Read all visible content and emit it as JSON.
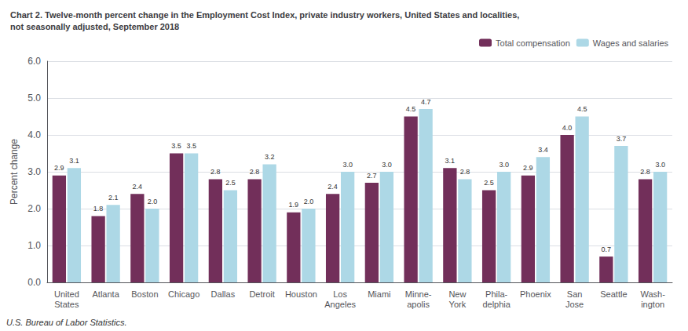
{
  "chart_data": {
    "type": "bar",
    "title": "Chart 2. Twelve-month percent change in the Employment Cost Index, private industry workers, United States and localities,\nnot seasonally adjusted, September 2018",
    "ylabel": "Percent change",
    "annotations": [
      "U.S. Bureau of Labor Statistics."
    ],
    "categories": [
      "United\nStates",
      "Atlanta",
      "Boston",
      "Chicago",
      "Dallas",
      "Detroit",
      "Houston",
      "Los\nAngeles",
      "Miami",
      "Minne-\napolis",
      "New\nYork",
      "Phila-\ndelphia",
      "Phoenix",
      "San\nJose",
      "Seattle",
      "Wash-\nington"
    ],
    "series": [
      {
        "name": "Total compensation",
        "color": "#722F5A",
        "values": [
          2.9,
          1.8,
          2.4,
          3.5,
          2.8,
          2.8,
          1.9,
          2.4,
          2.7,
          4.5,
          3.1,
          2.5,
          2.9,
          4.0,
          0.7,
          2.8
        ],
        "value_labels": [
          "2.9",
          "1.8",
          "2.4",
          "3.5",
          "2.8",
          "2.8",
          "1.9",
          "2.4",
          "2.7",
          "4.5",
          "3.1",
          "2.5",
          "2.9",
          "4.0",
          "0.7",
          "2.8"
        ]
      },
      {
        "name": "Wages and salaries",
        "color": "#ADD8E6",
        "values": [
          3.1,
          2.1,
          2.0,
          3.5,
          2.5,
          3.2,
          2.0,
          3.0,
          3.0,
          4.7,
          2.8,
          3.0,
          3.4,
          4.5,
          3.7,
          3.0
        ],
        "value_labels": [
          "3.1",
          "2.1",
          "2.0",
          "3.5",
          "2.5",
          "3.2",
          "2.0",
          "3.0",
          "3.0",
          "4.7",
          "2.8",
          "3.0",
          "3.4",
          "4.5",
          "3.7",
          "3.0"
        ]
      }
    ],
    "ylim": [
      0.0,
      6.0
    ],
    "yticks": [
      {
        "value": 0.0,
        "label": "0.0"
      },
      {
        "value": 1.0,
        "label": "1.0"
      },
      {
        "value": 2.0,
        "label": "2.0"
      },
      {
        "value": 3.0,
        "label": "3.0"
      },
      {
        "value": 4.0,
        "label": "4.0"
      },
      {
        "value": 5.0,
        "label": "5.0"
      },
      {
        "value": 6.0,
        "label": "6.0"
      }
    ],
    "grid": true,
    "legend": "upper right",
    "data_labels": true
  }
}
